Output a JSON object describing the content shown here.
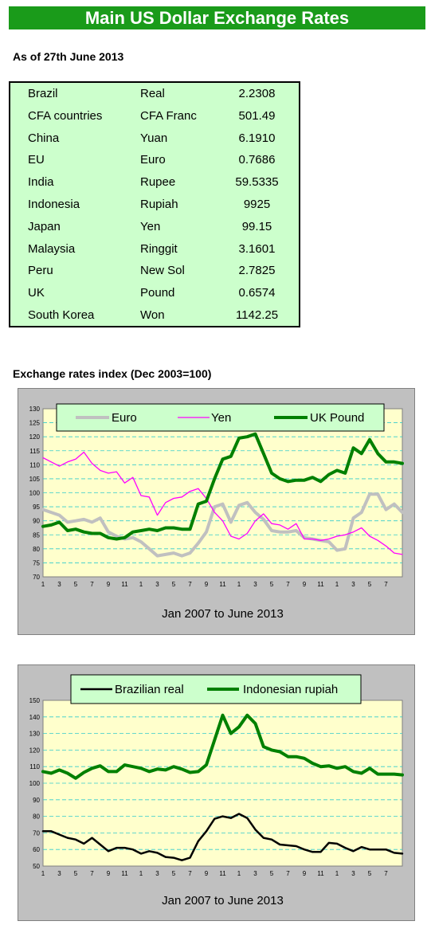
{
  "header": {
    "title": "Main US Dollar Exchange Rates"
  },
  "as_of": "As of 27th June 2013",
  "rates": [
    {
      "country": "Brazil",
      "currency": "Real",
      "value": "2.2308"
    },
    {
      "country": "CFA countries",
      "currency": "CFA Franc",
      "value": "501.49"
    },
    {
      "country": "China",
      "currency": "Yuan",
      "value": "6.1910"
    },
    {
      "country": "EU",
      "currency": "Euro",
      "value": "0.7686"
    },
    {
      "country": "India",
      "currency": "Rupee",
      "value": "59.5335"
    },
    {
      "country": "Indonesia",
      "currency": "Rupiah",
      "value": "9925"
    },
    {
      "country": "Japan",
      "currency": "Yen",
      "value": "99.15"
    },
    {
      "country": "Malaysia",
      "currency": "Ringgit",
      "value": "3.1601"
    },
    {
      "country": "Peru",
      "currency": "New Sol",
      "value": "2.7825"
    },
    {
      "country": "UK",
      "currency": "Pound",
      "value": "0.6574"
    },
    {
      "country": "South Korea",
      "currency": "Won",
      "value": "1142.25"
    }
  ],
  "section_title": "Exchange rates index (Dec 2003=100)",
  "colors": {
    "banner": "#1a9b1a",
    "table_bg": "#ccffcc",
    "plot_bg": "#ffffcc",
    "frame_bg": "#c0c0c0",
    "grid": "#33cccc",
    "euro": "#c0c0c0",
    "yen": "#ff00ff",
    "pound": "#008000",
    "real": "#000000",
    "rupiah": "#008000"
  },
  "chart_data": [
    {
      "type": "line",
      "xlabel": "Jan 2007 to June 2013",
      "ylim": [
        70,
        130
      ],
      "yticks": [
        70,
        75,
        80,
        85,
        90,
        95,
        100,
        105,
        110,
        115,
        120,
        125,
        130
      ],
      "x_ticks": [
        "1",
        "3",
        "5",
        "7",
        "9",
        "11",
        "1",
        "3",
        "5",
        "7",
        "9",
        "11",
        "1",
        "3",
        "5",
        "7",
        "9",
        "11",
        "1",
        "3",
        "5",
        "7"
      ],
      "grid": true,
      "legend_position": "top",
      "series": [
        {
          "name": "Euro",
          "color": "#c0c0c0",
          "width": 4,
          "values": [
            94,
            93,
            92,
            89.5,
            90,
            90.5,
            89.5,
            91,
            86,
            84.5,
            83.5,
            84,
            82.5,
            80,
            77.5,
            78,
            78.5,
            77.5,
            78.5,
            82,
            86,
            95,
            96,
            89.5,
            95.5,
            96.5,
            93,
            90.5,
            86.5,
            86,
            86,
            86.5,
            84,
            83.5,
            83,
            82.5,
            79.5,
            80,
            91,
            93,
            99.5,
            99.5,
            94,
            96,
            93
          ]
        },
        {
          "name": "Yen",
          "color": "#ff00ff",
          "width": 1.3,
          "values": [
            112.5,
            111,
            109.5,
            111,
            112,
            114.5,
            110.5,
            108,
            107,
            107.5,
            103.5,
            105.5,
            99,
            98.5,
            92,
            96.5,
            98,
            98.5,
            100.5,
            101.5,
            98,
            93,
            90,
            84.5,
            83.5,
            85.5,
            90,
            92.5,
            89,
            88.5,
            87,
            89,
            83.5,
            83.5,
            83,
            83.5,
            84.5,
            85,
            86,
            87.5,
            84.5,
            83,
            81,
            78.5,
            78
          ]
        },
        {
          "name": "UK Pound",
          "color": "#008000",
          "width": 4,
          "values": [
            88,
            88.5,
            89.5,
            86.5,
            87,
            86,
            85.5,
            85.5,
            84,
            83.5,
            84,
            86,
            86.5,
            87,
            86.5,
            87.5,
            87.5,
            87,
            87,
            96,
            97,
            105,
            112,
            113,
            119.5,
            120,
            121,
            114,
            107,
            105,
            104,
            104.5,
            104.5,
            105.5,
            104,
            106.5,
            108,
            107,
            116,
            114,
            119,
            114,
            111,
            111,
            110.5
          ]
        }
      ]
    },
    {
      "type": "line",
      "xlabel": "Jan 2007 to June 2013",
      "ylim": [
        50,
        150
      ],
      "yticks": [
        50,
        60,
        70,
        80,
        90,
        100,
        110,
        120,
        130,
        140,
        150
      ],
      "x_ticks": [
        "1",
        "3",
        "5",
        "7",
        "9",
        "11",
        "1",
        "3",
        "5",
        "7",
        "9",
        "11",
        "1",
        "3",
        "5",
        "7",
        "9",
        "11",
        "1",
        "3",
        "5",
        "7"
      ],
      "grid": true,
      "legend_position": "top",
      "series": [
        {
          "name": "Brazilian real",
          "color": "#000000",
          "width": 2.5,
          "values": [
            71,
            71,
            69,
            67,
            66,
            63.5,
            67,
            63,
            59,
            61,
            61,
            60,
            57.5,
            59,
            58,
            55.5,
            55,
            53.5,
            55,
            65,
            71,
            78.5,
            80,
            79,
            81.5,
            79,
            72,
            67,
            66,
            63,
            62.5,
            62,
            60,
            58.5,
            58.5,
            64,
            63.5,
            61,
            59,
            61.5,
            60,
            60,
            60,
            58,
            57.5
          ]
        },
        {
          "name": "Indonesian rupiah",
          "color": "#008000",
          "width": 4,
          "values": [
            107,
            106,
            108,
            106,
            103,
            106.5,
            109,
            110.5,
            107,
            107,
            111,
            110,
            109,
            107,
            108.5,
            108,
            110,
            108.5,
            106.5,
            107,
            111,
            126,
            141,
            130,
            134,
            141,
            136,
            122,
            120,
            119,
            116,
            116,
            115,
            112,
            110,
            110.5,
            109,
            110,
            107,
            106,
            109,
            105.5,
            105.5,
            105.5,
            105
          ]
        }
      ]
    }
  ]
}
